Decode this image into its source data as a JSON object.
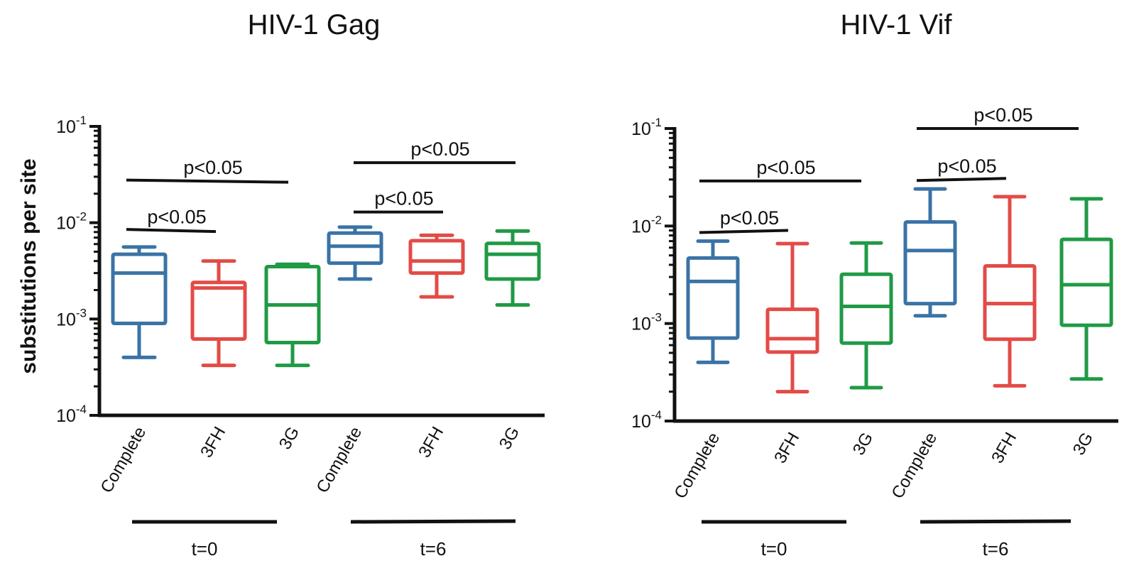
{
  "y_axis_label": "substitutions per site",
  "colors": {
    "Complete": "#3a73a6",
    "3FH": "#e34b47",
    "3G": "#1f9a45",
    "axis": "#111111"
  },
  "chart_data": [
    {
      "type": "box",
      "title": "HIV-1 Gag",
      "ylabel": "substitutions per site",
      "yscale": "log",
      "ylim": [
        0.0001,
        0.1
      ],
      "ytick_labels": [
        {
          "base": "10",
          "exp": "-1"
        },
        {
          "base": "10",
          "exp": "-2"
        },
        {
          "base": "10",
          "exp": "-3"
        },
        {
          "base": "10",
          "exp": "-4"
        }
      ],
      "categories": [
        "Complete",
        "3FH",
        "3G",
        "Complete",
        "3FH",
        "3G"
      ],
      "groups": [
        {
          "label": "t=0",
          "categories": [
            0,
            1,
            2
          ]
        },
        {
          "label": "t=6",
          "categories": [
            3,
            4,
            5
          ]
        }
      ],
      "boxes": [
        {
          "category": "Complete",
          "group": "t=0",
          "color": "Complete",
          "min": 0.0004,
          "q1": 0.0009,
          "median": 0.003,
          "q3": 0.0047,
          "max": 0.0056
        },
        {
          "category": "3FH",
          "group": "t=0",
          "color": "3FH",
          "min": 0.00033,
          "q1": 0.00062,
          "median": 0.0021,
          "q3": 0.0024,
          "max": 0.004
        },
        {
          "category": "3G",
          "group": "t=0",
          "color": "3G",
          "min": 0.00033,
          "q1": 0.00057,
          "median": 0.0014,
          "q3": 0.0035,
          "max": 0.0037
        },
        {
          "category": "Complete",
          "group": "t=6",
          "color": "Complete",
          "min": 0.0026,
          "q1": 0.0038,
          "median": 0.0057,
          "q3": 0.0078,
          "max": 0.009
        },
        {
          "category": "3FH",
          "group": "t=6",
          "color": "3FH",
          "min": 0.0017,
          "q1": 0.003,
          "median": 0.004,
          "q3": 0.0065,
          "max": 0.0074
        },
        {
          "category": "3G",
          "group": "t=6",
          "color": "3G",
          "min": 0.0014,
          "q1": 0.0026,
          "median": 0.0047,
          "q3": 0.0061,
          "max": 0.0082
        }
      ],
      "annotations": [
        {
          "text": "p<0.05",
          "from": 0,
          "to": 2,
          "y": 0.027,
          "tilt": "slightly down"
        },
        {
          "text": "p<0.05",
          "from": 0,
          "to": 1,
          "y": 0.0083,
          "tilt": "slightly down"
        },
        {
          "text": "p<0.05",
          "from": 3,
          "to": 5,
          "y": 0.042,
          "tilt": "flat"
        },
        {
          "text": "p<0.05",
          "from": 3,
          "to": 4,
          "y": 0.0129,
          "tilt": "flat"
        }
      ]
    },
    {
      "type": "box",
      "title": "HIV-1 Vif",
      "ylabel": "",
      "yscale": "log",
      "ylim": [
        0.0001,
        0.1
      ],
      "ytick_labels": [
        {
          "base": "10",
          "exp": "-1"
        },
        {
          "base": "10",
          "exp": "-2"
        },
        {
          "base": "10",
          "exp": "-3"
        },
        {
          "base": "10",
          "exp": "-4"
        }
      ],
      "categories": [
        "Complete",
        "3FH",
        "3G",
        "Complete",
        "3FH",
        "3G"
      ],
      "groups": [
        {
          "label": "t=0",
          "categories": [
            0,
            1,
            2
          ]
        },
        {
          "label": "t=6",
          "categories": [
            3,
            4,
            5
          ]
        }
      ],
      "boxes": [
        {
          "category": "Complete",
          "group": "t=0",
          "color": "Complete",
          "min": 0.0004,
          "q1": 0.00071,
          "median": 0.0027,
          "q3": 0.0047,
          "max": 0.007
        },
        {
          "category": "3FH",
          "group": "t=0",
          "color": "3FH",
          "min": 0.0002,
          "q1": 0.00051,
          "median": 0.0007,
          "q3": 0.0014,
          "max": 0.0066
        },
        {
          "category": "3G",
          "group": "t=0",
          "color": "3G",
          "min": 0.00022,
          "q1": 0.00063,
          "median": 0.0015,
          "q3": 0.0032,
          "max": 0.0067
        },
        {
          "category": "Complete",
          "group": "t=6",
          "color": "Complete",
          "min": 0.0012,
          "q1": 0.0016,
          "median": 0.0056,
          "q3": 0.011,
          "max": 0.024
        },
        {
          "category": "3FH",
          "group": "t=6",
          "color": "3FH",
          "min": 0.00023,
          "q1": 0.00069,
          "median": 0.0016,
          "q3": 0.0039,
          "max": 0.02
        },
        {
          "category": "3G",
          "group": "t=6",
          "color": "3G",
          "min": 0.00027,
          "q1": 0.00096,
          "median": 0.0025,
          "q3": 0.0073,
          "max": 0.019
        }
      ],
      "annotations": [
        {
          "text": "p<0.05",
          "from": 0,
          "to": 2,
          "y": 0.029,
          "tilt": "flat"
        },
        {
          "text": "p<0.05",
          "from": 0,
          "to": 1,
          "y": 0.0088,
          "tilt": "slightly up"
        },
        {
          "text": "p<0.05",
          "from": 3,
          "to": 5,
          "y": 0.1,
          "tilt": "flat"
        },
        {
          "text": "p<0.05",
          "from": 3,
          "to": 4,
          "y": 0.03,
          "tilt": "slightly up"
        }
      ]
    }
  ]
}
